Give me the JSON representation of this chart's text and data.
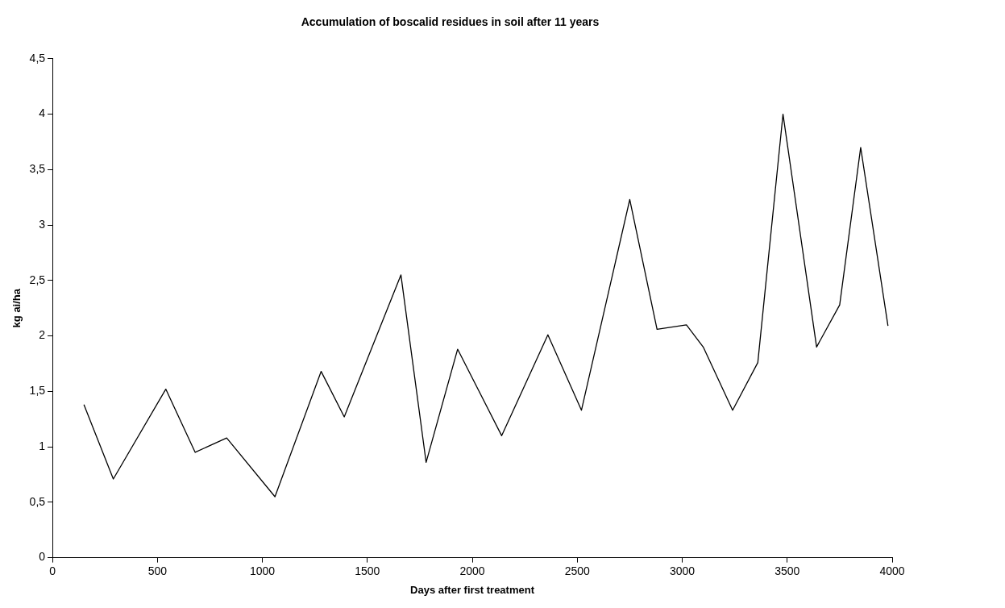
{
  "chart_data": {
    "type": "line",
    "title": "Accumulation of boscalid residues in soil after 11 years",
    "xlabel": "Days after first treatment",
    "ylabel": "kg ai/ha",
    "x": [
      150,
      290,
      540,
      680,
      830,
      1060,
      1280,
      1390,
      1660,
      1780,
      1930,
      2140,
      2360,
      2520,
      2750,
      2880,
      3020,
      3100,
      3240,
      3360,
      3480,
      3640,
      3750,
      3850,
      3980
    ],
    "series": [
      {
        "color": "#000000",
        "values": [
          1.38,
          0.71,
          1.52,
          0.95,
          1.08,
          0.55,
          1.68,
          1.27,
          2.55,
          0.86,
          1.88,
          1.1,
          2.01,
          1.33,
          3.23,
          2.06,
          2.1,
          1.9,
          1.33,
          1.76,
          4.0,
          1.9,
          2.28,
          3.7,
          2.09
        ]
      }
    ],
    "xlim": [
      0,
      4000
    ],
    "xticks": [
      0,
      500,
      1000,
      1500,
      2000,
      2500,
      3000,
      3500,
      4000
    ],
    "ylim": [
      0,
      4.5
    ],
    "yticks": [
      0,
      {
        "value": 0.5,
        "label": "0,5"
      },
      1,
      {
        "value": 1.5,
        "label": "1,5"
      },
      2,
      {
        "value": 2.5,
        "label": "2,5"
      },
      3,
      {
        "value": 3.5,
        "label": "3,5"
      },
      4,
      {
        "value": 4.5,
        "label": "4,5"
      }
    ],
    "grid": false,
    "legend": false,
    "marker": "none",
    "line_style": "solid"
  }
}
